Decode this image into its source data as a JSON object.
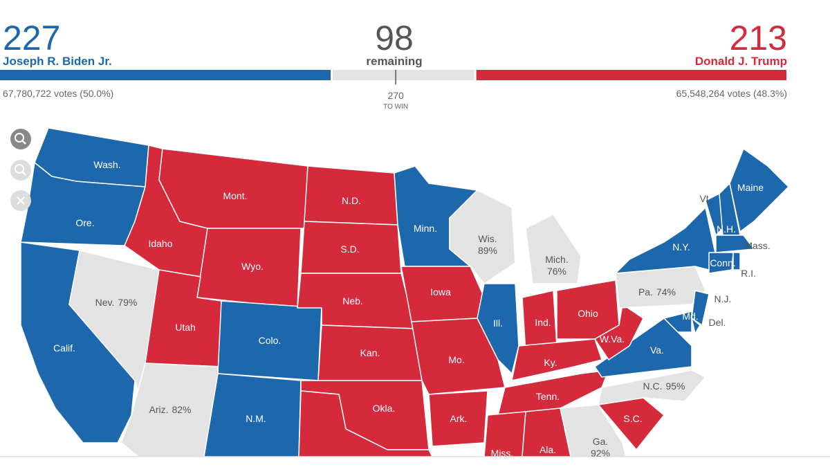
{
  "header": {
    "biden": {
      "electoral": 227,
      "name": "Joseph R. Biden Jr.",
      "votes": "67,780,722 votes (50.0%)",
      "color": "#1d67ad"
    },
    "remaining": {
      "count": 98,
      "label": "remaining",
      "color": "#e3e3e3"
    },
    "trump": {
      "electoral": 213,
      "name": "Donald J. Trump",
      "votes": "65,548,264 votes (48.3%)",
      "color": "#d42a3c"
    },
    "to_win": {
      "value": 270,
      "label": "TO WIN"
    }
  },
  "map": {
    "states": [
      {
        "label": "Wash.",
        "fill": "#1d67ad"
      },
      {
        "label": "Ore.",
        "fill": "#1d67ad"
      },
      {
        "label": "Calif.",
        "fill": "#1d67ad"
      },
      {
        "label": "Nev.",
        "pct": "79%",
        "fill": "#e3e3e3"
      },
      {
        "label": "Idaho",
        "fill": "#d42a3c"
      },
      {
        "label": "Mont.",
        "fill": "#d42a3c"
      },
      {
        "label": "Wyo.",
        "fill": "#d42a3c"
      },
      {
        "label": "Utah",
        "fill": "#d42a3c"
      },
      {
        "label": "Ariz.",
        "pct": "82%",
        "fill": "#e3e3e3"
      },
      {
        "label": "Colo.",
        "fill": "#1d67ad"
      },
      {
        "label": "N.M.",
        "fill": "#1d67ad"
      },
      {
        "label": "N.D.",
        "fill": "#d42a3c"
      },
      {
        "label": "S.D.",
        "fill": "#d42a3c"
      },
      {
        "label": "Neb.",
        "fill": "#d42a3c"
      },
      {
        "label": "Kan.",
        "fill": "#d42a3c"
      },
      {
        "label": "Okla.",
        "fill": "#d42a3c"
      },
      {
        "fill": "#d42a3c"
      },
      {
        "label": "Minn.",
        "fill": "#1d67ad"
      },
      {
        "label": "Iowa",
        "fill": "#d42a3c"
      },
      {
        "label": "Mo.",
        "fill": "#d42a3c"
      },
      {
        "label": "Ark.",
        "fill": "#d42a3c"
      },
      {
        "label": "Wis.",
        "pct": "89%",
        "fill": "#e3e3e3"
      },
      {
        "label": "Ill.",
        "fill": "#1d67ad"
      },
      {
        "label": "Mich.",
        "pct": "76%",
        "fill": "#e3e3e3"
      },
      {
        "label": "Ind.",
        "fill": "#d42a3c"
      },
      {
        "label": "Ohio",
        "fill": "#d42a3c"
      },
      {
        "label": "Ky.",
        "fill": "#d42a3c"
      },
      {
        "label": "Tenn.",
        "fill": "#d42a3c"
      },
      {
        "label": "Miss.",
        "fill": "#d42a3c"
      },
      {
        "label": "Ala.",
        "fill": "#d42a3c"
      },
      {
        "label": "Ga.",
        "pct": "92%",
        "fill": "#e3e3e3"
      },
      {
        "label": "S.C.",
        "fill": "#d42a3c"
      },
      {
        "label": "N.C.",
        "pct": "95%",
        "fill": "#e3e3e3"
      },
      {
        "label": "Va.",
        "fill": "#1d67ad"
      },
      {
        "label": "W.Va.",
        "fill": "#d42a3c"
      },
      {
        "label": "Pa.",
        "pct": "74%",
        "fill": "#e3e3e3"
      },
      {
        "label": "N.Y.",
        "fill": "#1d67ad"
      },
      {
        "label": "N.J.",
        "fill": "#1d67ad"
      },
      {
        "label": "Del.",
        "fill": "#1d67ad"
      },
      {
        "label": "Md.",
        "fill": "#1d67ad"
      },
      {
        "label": "Vt.",
        "fill": "#1d67ad"
      },
      {
        "label": "N.H.",
        "fill": "#1d67ad"
      },
      {
        "label": "Maine",
        "fill": "#1d67ad"
      },
      {
        "label": "Mass.",
        "fill": "#1d67ad"
      },
      {
        "label": "Conn.",
        "fill": "#1d67ad"
      },
      {
        "label": "R.I.",
        "fill": "#1d67ad"
      }
    ]
  }
}
